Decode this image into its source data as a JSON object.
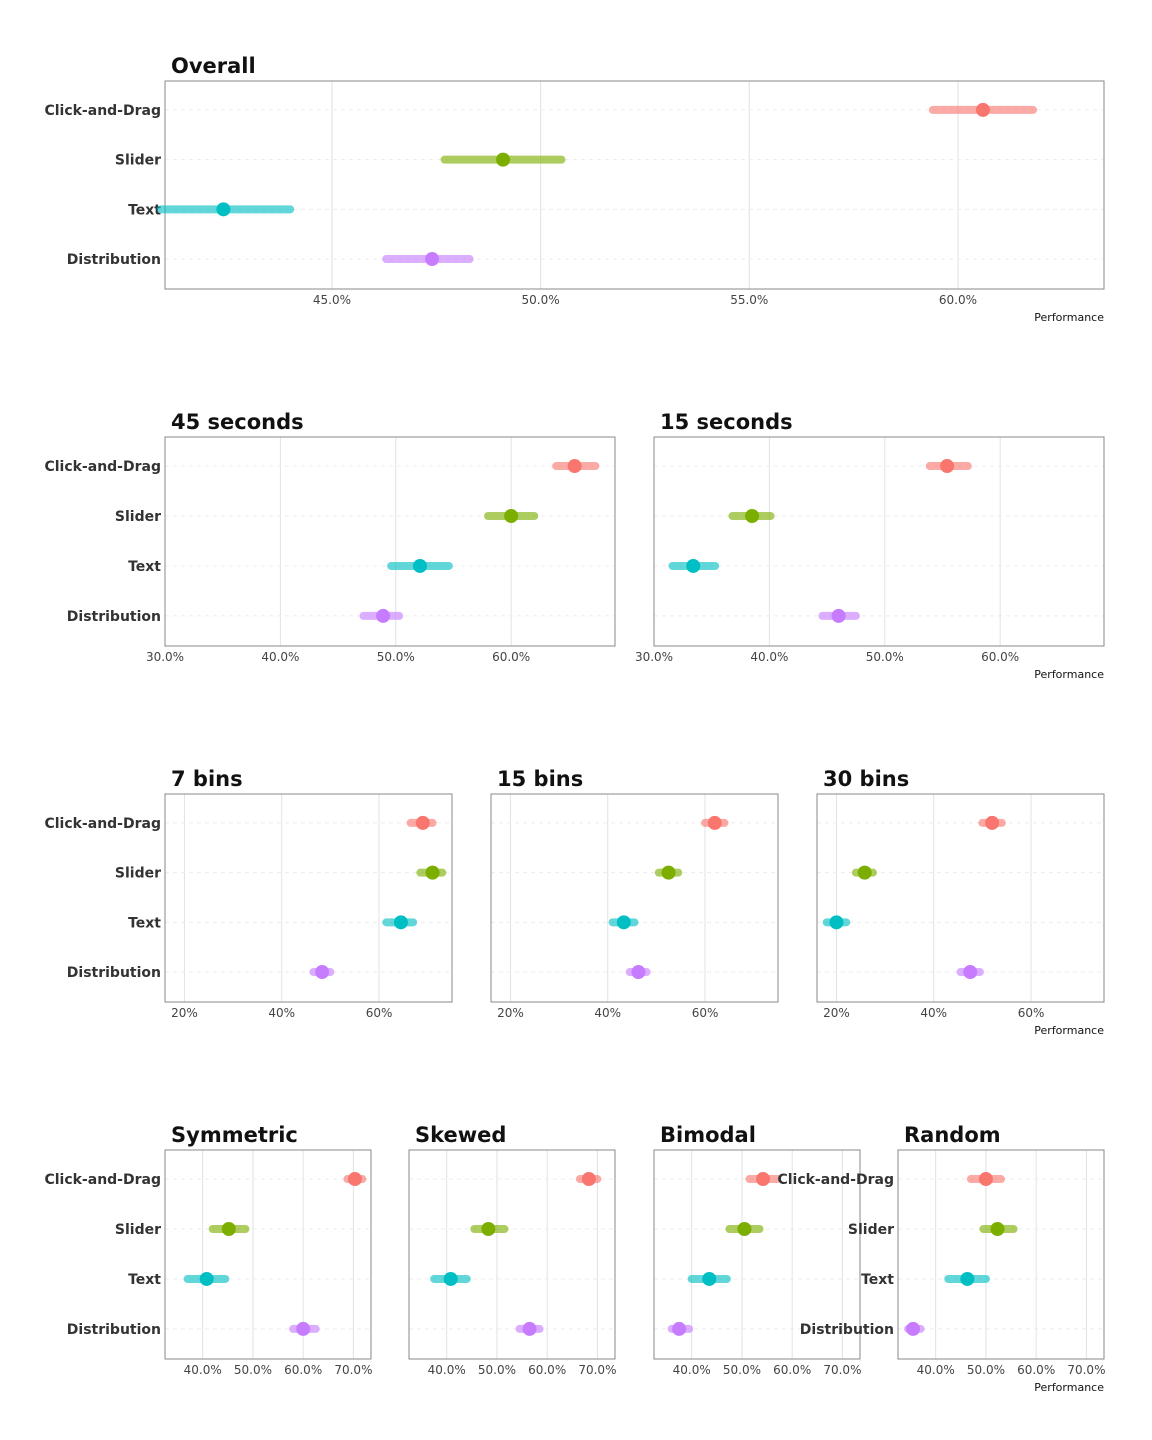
{
  "colors": {
    "Click-and-Drag": "#F8766D",
    "Slider": "#7CAE00",
    "Text": "#00BFC4",
    "Distribution": "#C77CFF"
  },
  "chart_data": [
    {
      "type": "scatter",
      "style": "point-interval",
      "title": "Overall",
      "xlabel": "Performance",
      "categories": [
        "Click-and-Drag",
        "Slider",
        "Text",
        "Distribution"
      ],
      "xlim": [
        41.0,
        63.5
      ],
      "xticks": [
        45,
        50,
        55,
        60
      ],
      "tick_labels": [
        "45.0%",
        "50.0%",
        "55.0%",
        "60.0%"
      ],
      "estimates": [
        60.6,
        49.1,
        42.4,
        47.4
      ],
      "ci_low": [
        59.4,
        47.7,
        40.9,
        46.3
      ],
      "ci_high": [
        61.8,
        50.5,
        44.0,
        48.3
      ]
    },
    {
      "type": "scatter",
      "style": "point-interval",
      "title": "45 seconds",
      "xlabel": "",
      "categories": [
        "Click-and-Drag",
        "Slider",
        "Text",
        "Distribution"
      ],
      "xlim": [
        30,
        69
      ],
      "xticks": [
        30,
        40,
        50,
        60
      ],
      "tick_labels": [
        "30.0%",
        "40.0%",
        "50.0%",
        "60.0%"
      ],
      "estimates": [
        65.5,
        60.0,
        52.1,
        48.9
      ],
      "ci_low": [
        63.9,
        58.0,
        49.6,
        47.2
      ],
      "ci_high": [
        67.3,
        62.0,
        54.6,
        50.3
      ]
    },
    {
      "type": "scatter",
      "style": "point-interval",
      "title": "15 seconds",
      "xlabel": "Performance",
      "categories": [
        "Click-and-Drag",
        "Slider",
        "Text",
        "Distribution"
      ],
      "xlim": [
        30,
        69
      ],
      "xticks": [
        30,
        40,
        50,
        60
      ],
      "tick_labels": [
        "30.0%",
        "40.0%",
        "50.0%",
        "60.0%"
      ],
      "estimates": [
        55.4,
        38.5,
        33.4,
        46.0
      ],
      "ci_low": [
        53.9,
        36.8,
        31.6,
        44.6
      ],
      "ci_high": [
        57.2,
        40.1,
        35.3,
        47.5
      ]
    },
    {
      "type": "scatter",
      "style": "point-interval",
      "title": "7 bins",
      "xlabel": "",
      "categories": [
        "Click-and-Drag",
        "Slider",
        "Text",
        "Distribution"
      ],
      "xlim": [
        16,
        75
      ],
      "xticks": [
        20,
        40,
        60
      ],
      "tick_labels": [
        "20%",
        "40%",
        "60%"
      ],
      "estimates": [
        69.0,
        71.0,
        64.5,
        48.3
      ],
      "ci_low": [
        66.5,
        68.5,
        61.5,
        46.5
      ],
      "ci_high": [
        71.0,
        73.0,
        67.0,
        50.0
      ]
    },
    {
      "type": "scatter",
      "style": "point-interval",
      "title": "15 bins",
      "xlabel": "",
      "categories": [
        "Click-and-Drag",
        "Slider",
        "Text",
        "Distribution"
      ],
      "xlim": [
        16,
        75
      ],
      "xticks": [
        20,
        40,
        60
      ],
      "tick_labels": [
        "20%",
        "40%",
        "60%"
      ],
      "estimates": [
        62.0,
        52.5,
        43.3,
        46.3
      ],
      "ci_low": [
        60.0,
        50.5,
        41.0,
        44.5
      ],
      "ci_high": [
        64.0,
        54.5,
        45.5,
        48.0
      ]
    },
    {
      "type": "scatter",
      "style": "point-interval",
      "title": "30 bins",
      "xlabel": "Performance",
      "categories": [
        "Click-and-Drag",
        "Slider",
        "Text",
        "Distribution"
      ],
      "xlim": [
        16,
        75
      ],
      "xticks": [
        20,
        40,
        60
      ],
      "tick_labels": [
        "20%",
        "40%",
        "60%"
      ],
      "estimates": [
        52.0,
        25.8,
        20.0,
        47.5
      ],
      "ci_low": [
        50.0,
        24.0,
        18.0,
        45.5
      ],
      "ci_high": [
        54.0,
        27.5,
        22.0,
        49.5
      ]
    },
    {
      "type": "scatter",
      "style": "point-interval",
      "title": "Symmetric",
      "xlabel": "",
      "categories": [
        "Click-and-Drag",
        "Slider",
        "Text",
        "Distribution"
      ],
      "xlim": [
        32.5,
        73.5
      ],
      "xticks": [
        40,
        50,
        60,
        70
      ],
      "tick_labels": [
        "40.0%",
        "50.0%",
        "60.0%",
        "70.0%"
      ],
      "estimates": [
        70.3,
        45.2,
        40.8,
        60.0
      ],
      "ci_low": [
        68.8,
        42.0,
        37.0,
        58.0
      ],
      "ci_high": [
        71.8,
        48.5,
        44.5,
        62.5
      ]
    },
    {
      "type": "scatter",
      "style": "point-interval",
      "title": "Skewed",
      "xlabel": "",
      "categories": [
        "Click-and-Drag",
        "Slider",
        "Text",
        "Distribution"
      ],
      "xlim": [
        32.5,
        73.5
      ],
      "xticks": [
        40,
        50,
        60,
        70
      ],
      "tick_labels": [
        "40.0%",
        "50.0%",
        "60.0%",
        "70.0%"
      ],
      "estimates": [
        68.3,
        48.3,
        40.8,
        56.5
      ],
      "ci_low": [
        66.5,
        45.5,
        37.5,
        54.5
      ],
      "ci_high": [
        70.0,
        51.5,
        44.0,
        58.5
      ]
    },
    {
      "type": "scatter",
      "style": "point-interval",
      "title": "Bimodal",
      "xlabel": "",
      "categories": [
        "Click-and-Drag",
        "Slider",
        "Text",
        "Distribution"
      ],
      "xlim": [
        32.5,
        73.5
      ],
      "xticks": [
        40,
        50,
        60,
        70
      ],
      "tick_labels": [
        "40.0%",
        "50.0%",
        "60.0%",
        "70.0%"
      ],
      "estimates": [
        54.2,
        50.5,
        43.5,
        37.5
      ],
      "ci_low": [
        51.5,
        47.5,
        40.0,
        36.0
      ],
      "ci_high": [
        57.0,
        53.5,
        47.0,
        39.5
      ]
    },
    {
      "type": "scatter",
      "style": "point-interval",
      "title": "Random",
      "xlabel": "Performance",
      "categories": [
        "Click-and-Drag",
        "Slider",
        "Text",
        "Distribution"
      ],
      "xlim": [
        32.5,
        73.5
      ],
      "xticks": [
        40,
        50,
        60,
        70
      ],
      "tick_labels": [
        "40.0%",
        "50.0%",
        "60.0%",
        "70.0%"
      ],
      "estimates": [
        50.0,
        52.3,
        46.3,
        35.5
      ],
      "ci_low": [
        47.0,
        49.5,
        42.5,
        34.5
      ],
      "ci_high": [
        53.0,
        55.5,
        50.0,
        37.0
      ]
    }
  ]
}
